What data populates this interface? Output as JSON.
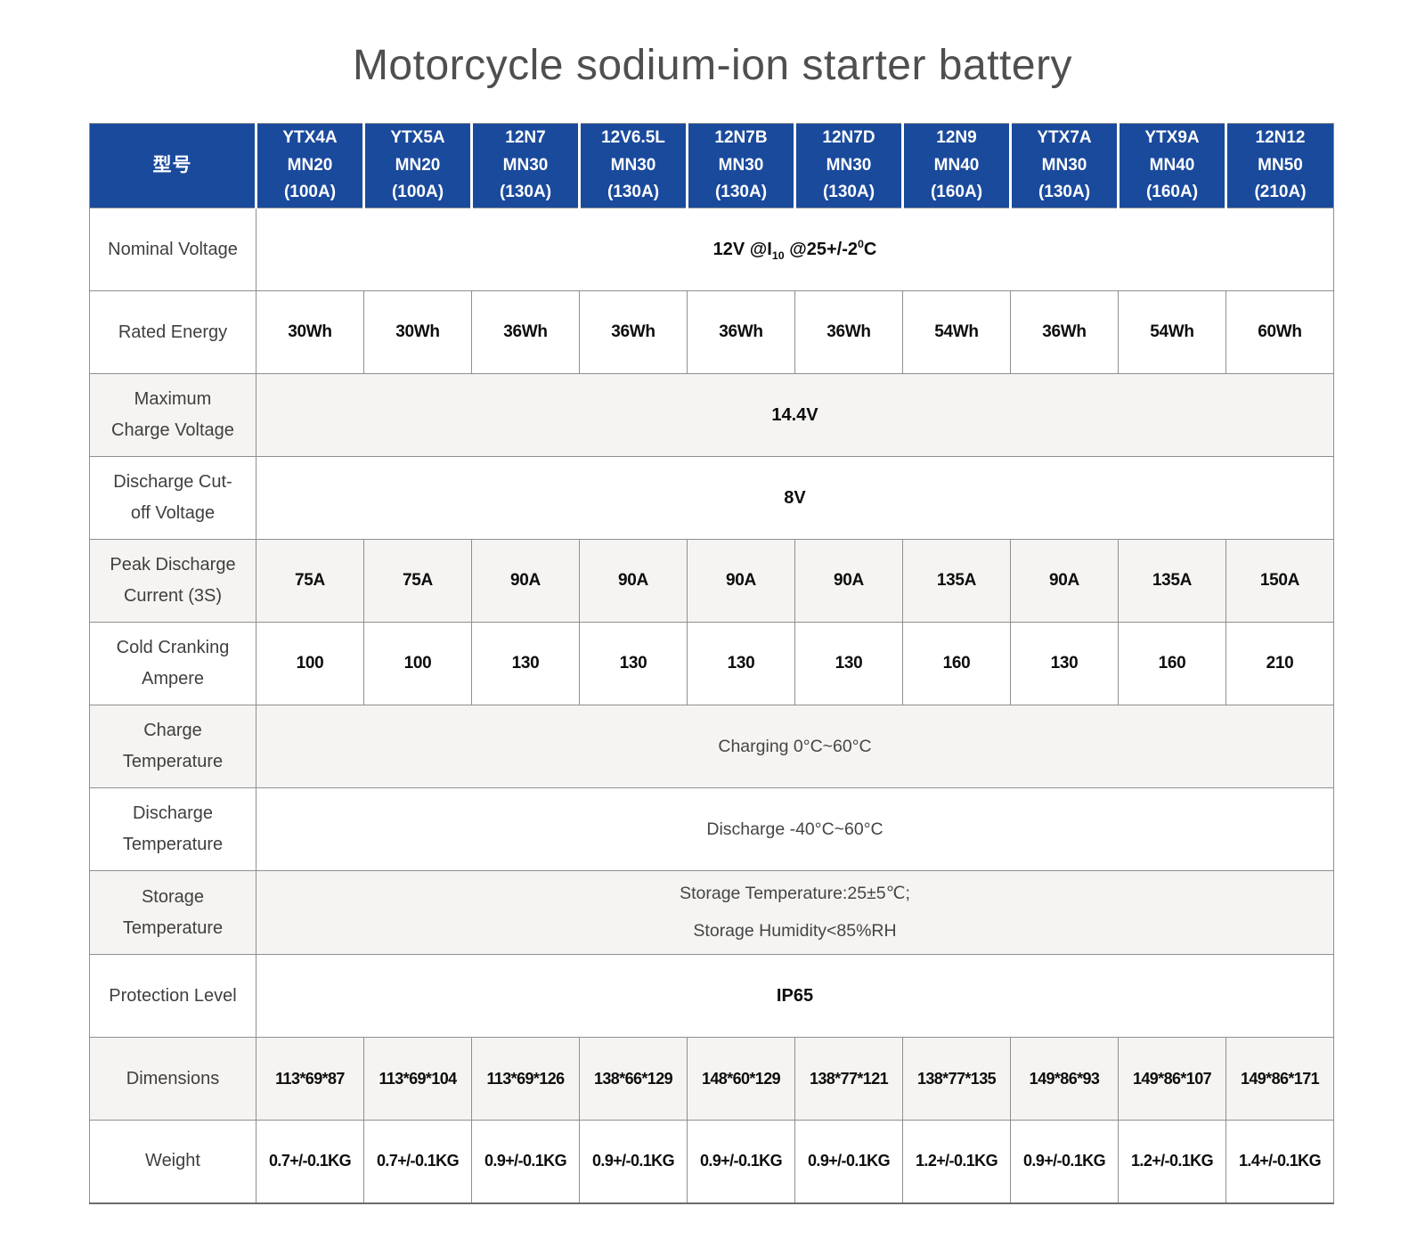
{
  "title": "Motorcycle sodium-ion starter battery",
  "colors": {
    "header_bg": "#1a4a9c",
    "header_text": "#ffffff",
    "row_alt_bg": "#f5f4f2",
    "border": "#8f8f8f",
    "value_text": "#0d0d0d",
    "label_text": "#3f3f3f"
  },
  "table": {
    "model_label": "型号",
    "columns": [
      "YTX4A\nMN20\n(100A)",
      "YTX5A\nMN20\n(100A)",
      "12N7\nMN30\n(130A)",
      "12V6.5L\nMN30\n(130A)",
      "12N7B\nMN30\n(130A)",
      "12N7D\nMN30\n(130A)",
      "12N9\nMN40\n(160A)",
      "YTX7A\nMN30\n(130A)",
      "YTX9A\nMN40\n(160A)",
      "12N12\nMN50\n(210A)"
    ],
    "rows": {
      "nominal_voltage": {
        "label": "Nominal Voltage",
        "value_parts": {
          "p1": "12V @I",
          "sub": "10",
          "p2": " @25+/-2",
          "sup": "0",
          "p3": "C"
        }
      },
      "rated_energy": {
        "label": "Rated Energy",
        "values": [
          "30Wh",
          "30Wh",
          "36Wh",
          "36Wh",
          "36Wh",
          "36Wh",
          "54Wh",
          "36Wh",
          "54Wh",
          "60Wh"
        ]
      },
      "max_charge_voltage": {
        "label": "Maximum Charge Voltage",
        "value": "14.4V"
      },
      "discharge_cutoff_voltage": {
        "label": "Discharge Cut-off Voltage",
        "value": "8V"
      },
      "peak_discharge_current": {
        "label": "Peak Discharge Current (3S)",
        "values": [
          "75A",
          "75A",
          "90A",
          "90A",
          "90A",
          "90A",
          "135A",
          "90A",
          "135A",
          "150A"
        ]
      },
      "cold_cranking_ampere": {
        "label": "Cold Cranking Ampere",
        "values": [
          "100",
          "100",
          "130",
          "130",
          "130",
          "130",
          "160",
          "130",
          "160",
          "210"
        ]
      },
      "charge_temperature": {
        "label": "Charge Temperature",
        "value": "Charging 0°C~60°C"
      },
      "discharge_temperature": {
        "label": "Discharge Temperature",
        "value": "Discharge -40°C~60°C"
      },
      "storage_temperature": {
        "label": "Storage Temperature",
        "line1": "Storage Temperature:25±5℃;",
        "line2": "Storage Humidity<85%RH"
      },
      "protection_level": {
        "label": "Protection Level",
        "value": "IP65"
      },
      "dimensions": {
        "label": "Dimensions",
        "values": [
          "113*69*87",
          "113*69*104",
          "113*69*126",
          "138*66*129",
          "148*60*129",
          "138*77*121",
          "138*77*135",
          "149*86*93",
          "149*86*107",
          "149*86*171"
        ]
      },
      "weight": {
        "label": "Weight",
        "values": [
          "0.7+/-0.1KG",
          "0.7+/-0.1KG",
          "0.9+/-0.1KG",
          "0.9+/-0.1KG",
          "0.9+/-0.1KG",
          "0.9+/-0.1KG",
          "1.2+/-0.1KG",
          "0.9+/-0.1KG",
          "1.2+/-0.1KG",
          "1.4+/-0.1KG"
        ]
      }
    }
  }
}
